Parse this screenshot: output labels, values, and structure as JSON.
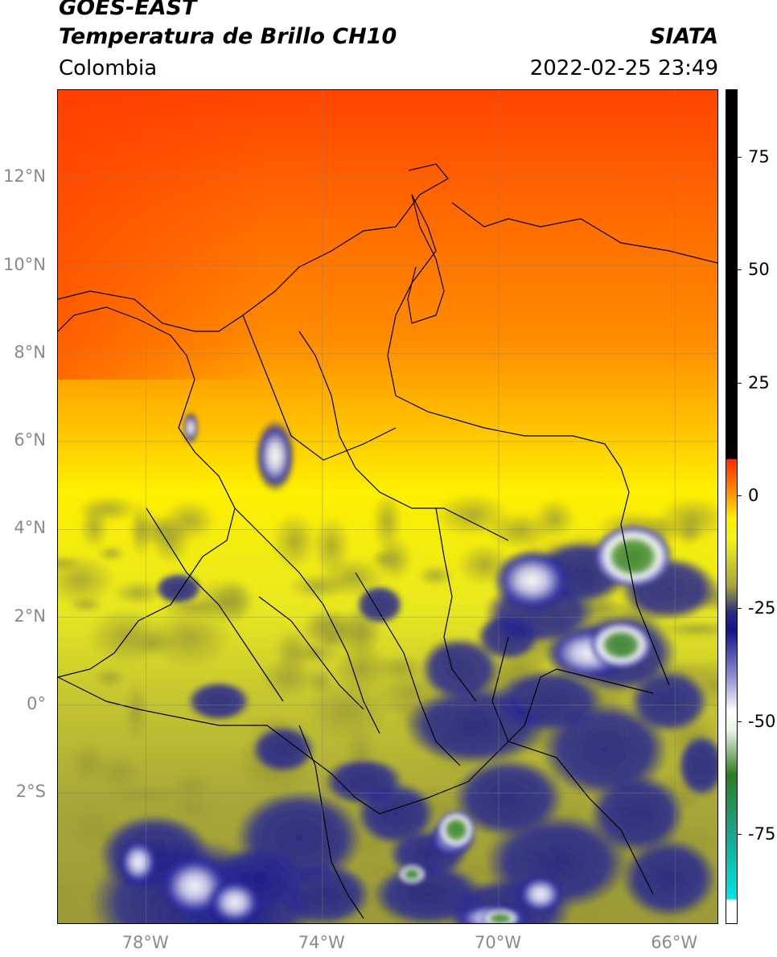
{
  "header": {
    "title_line1": "GOES-EAST",
    "title_line2": "Temperatura de Brillo CH10",
    "organization": "SIATA",
    "region": "Colombia",
    "timestamp": "2022-02-25 23:49"
  },
  "axes": {
    "lat_labels": [
      {
        "text": "12°N",
        "value": 12
      },
      {
        "text": "10°N",
        "value": 10
      },
      {
        "text": "8°N",
        "value": 8
      },
      {
        "text": "6°N",
        "value": 6
      },
      {
        "text": "4°N",
        "value": 4
      },
      {
        "text": "2°N",
        "value": 2
      },
      {
        "text": "0°",
        "value": 0
      },
      {
        "text": "2°S",
        "value": -2
      }
    ],
    "lon_labels": [
      {
        "text": "78°W",
        "value": -78
      },
      {
        "text": "74°W",
        "value": -74
      },
      {
        "text": "70°W",
        "value": -70
      },
      {
        "text": "66°W",
        "value": -66
      }
    ],
    "lat_range": [
      -5.0,
      14.0
    ],
    "lon_range": [
      -80.0,
      -65.0
    ]
  },
  "colorbar": {
    "min": -95,
    "max": 90,
    "tick_labels": [
      {
        "text": "75",
        "value": 75
      },
      {
        "text": "50",
        "value": 50
      },
      {
        "text": "25",
        "value": 25
      },
      {
        "text": "0",
        "value": 0
      },
      {
        "text": "-25",
        "value": -25
      },
      {
        "text": "-50",
        "value": -50
      },
      {
        "text": "-75",
        "value": -75
      }
    ],
    "stops": [
      {
        "value": -95,
        "color": "#ffffff"
      },
      {
        "value": -90,
        "color": "#ffffff"
      },
      {
        "value": -89.5,
        "color": "#00e5e5"
      },
      {
        "value": -75,
        "color": "#1aa58c"
      },
      {
        "value": -62,
        "color": "#2e7d1e"
      },
      {
        "value": -52,
        "color": "#eef5ec"
      },
      {
        "value": -48,
        "color": "#ffffff"
      },
      {
        "value": -40,
        "color": "#8c8cd0"
      },
      {
        "value": -30,
        "color": "#14148c"
      },
      {
        "value": -26,
        "color": "#2a2a80"
      },
      {
        "value": -20,
        "color": "#a6a63a"
      },
      {
        "value": -10,
        "color": "#f2f21a"
      },
      {
        "value": -5,
        "color": "#ffee00"
      },
      {
        "value": 0,
        "color": "#ff9900"
      },
      {
        "value": 8,
        "color": "#ff2a00"
      },
      {
        "value": 8.01,
        "color": "#000000"
      },
      {
        "value": 90,
        "color": "#000000"
      }
    ]
  },
  "colors": {
    "cold_tops": "#1a1a8c",
    "land_mid": "#a8a83a",
    "warm_yellow": "#f5f000",
    "warm_orange": "#ff8c00",
    "hot_red": "#ff4a00",
    "graticule": "#808080"
  }
}
